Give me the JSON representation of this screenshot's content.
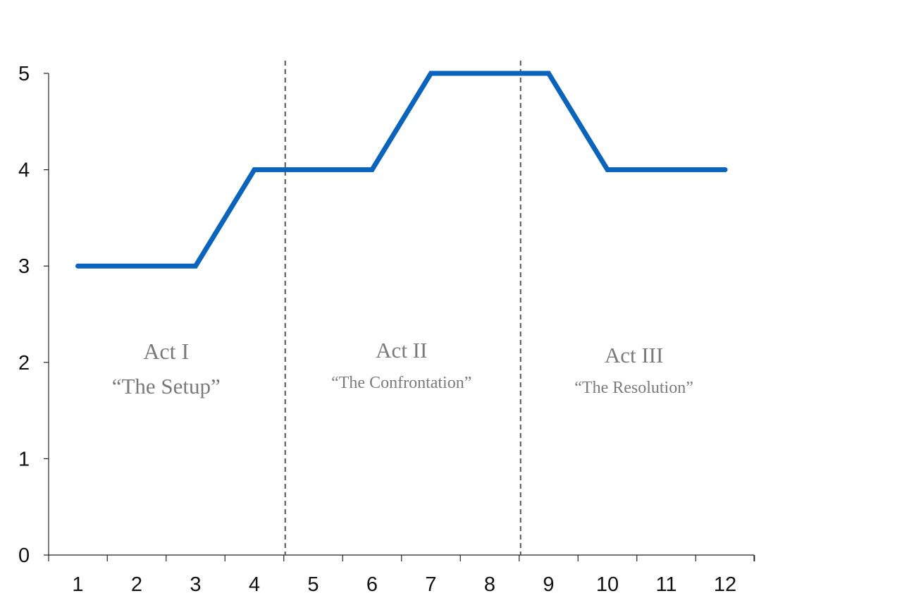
{
  "chart_data": {
    "type": "line",
    "x": [
      1,
      2,
      3,
      4,
      5,
      6,
      7,
      8,
      9,
      10,
      11,
      12
    ],
    "xtick_labels": [
      "1",
      "2",
      "3",
      "4",
      "5",
      "6",
      "7",
      "8",
      "9",
      "10",
      "11",
      "12"
    ],
    "series": [
      {
        "x": [
          1,
          3,
          4,
          6,
          7,
          9,
          10,
          12
        ],
        "values": [
          3,
          3,
          4,
          4,
          5,
          5,
          4,
          4
        ]
      }
    ],
    "ylim": [
      0,
      5
    ],
    "yticks": [
      0,
      1,
      2,
      3,
      4,
      5
    ],
    "xlim": [
      0.5,
      12.7
    ],
    "grid": false,
    "line_color": "#0a64bc",
    "divider_color": "#555555",
    "act_dividers": [
      4.5,
      8.5
    ],
    "annotations": [
      {
        "title": "Act I",
        "subtitle": "“The Setup”",
        "x": 2.5,
        "y_title": 2.05,
        "y_subtitle": 1.75,
        "size": "large"
      },
      {
        "title": "Act II",
        "subtitle": "“The Confrontation”",
        "x": 6.5,
        "y_title": 2.05,
        "y_subtitle": 1.75,
        "size": "small"
      },
      {
        "title": "Act III",
        "subtitle": "“The Resolution”",
        "x": 10.45,
        "y_title": 2.0,
        "y_subtitle": 1.7,
        "size": "small"
      }
    ],
    "title": "",
    "xlabel": "",
    "ylabel": ""
  }
}
